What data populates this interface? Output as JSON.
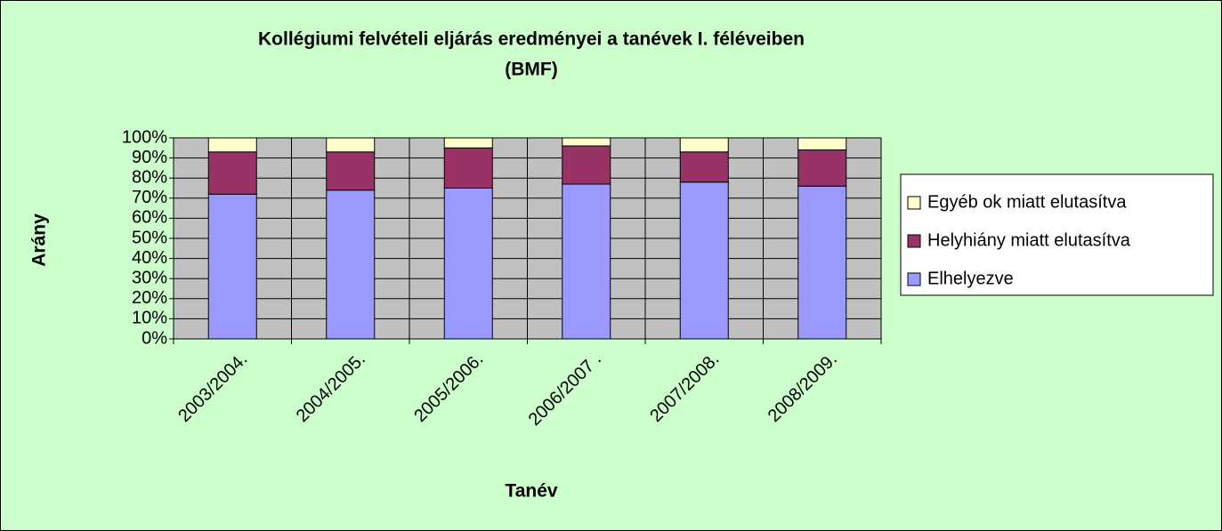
{
  "chart_data": {
    "type": "bar",
    "stacked": true,
    "title": "Kollégiumi felvételi eljárás eredményei a tanévek I. féléveiben",
    "subtitle": "(BMF)",
    "x_label": "Tanév",
    "y_label": "Arány",
    "categories": [
      "2003/2004.",
      "2004/2005.",
      "2005/2006.",
      "2006/2007 .",
      "2007/2008.",
      "2008/2009."
    ],
    "series": [
      {
        "name": "Elhelyezve",
        "color": "#9999ff",
        "values": [
          72,
          74,
          75,
          77,
          78,
          76
        ]
      },
      {
        "name": "Helyhiány miatt elutasítva",
        "color": "#993366",
        "values": [
          21,
          19,
          20,
          19,
          15,
          18
        ]
      },
      {
        "name": "Egyéb ok miatt elutasítva",
        "color": "#ffffcc",
        "values": [
          7,
          7,
          5,
          4,
          7,
          6
        ]
      }
    ],
    "ylim": [
      0,
      100
    ],
    "yticks": [
      {
        "value": 0,
        "label": "0%"
      },
      {
        "value": 10,
        "label": "10%"
      },
      {
        "value": 20,
        "label": "20%"
      },
      {
        "value": 30,
        "label": "30%"
      },
      {
        "value": 40,
        "label": "40%"
      },
      {
        "value": 50,
        "label": "50%"
      },
      {
        "value": 60,
        "label": "60%"
      },
      {
        "value": 70,
        "label": "70%"
      },
      {
        "value": 80,
        "label": "80%"
      },
      {
        "value": 90,
        "label": "90%"
      },
      {
        "value": 100,
        "label": "100%"
      }
    ],
    "grid": true,
    "legend": "right"
  }
}
